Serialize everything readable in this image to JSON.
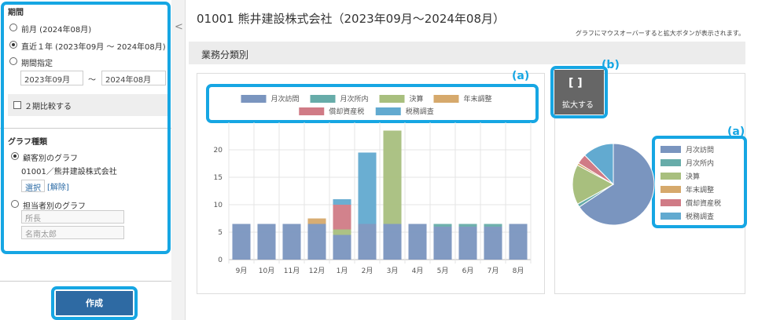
{
  "sidebar": {
    "period_title": "期間",
    "period_options": [
      "前月 (2024年08月)",
      "直近１年 (2023年09月 ～ 2024年08月)",
      "期間指定"
    ],
    "date_from": "2023年09月",
    "date_sep": "～",
    "date_to": "2024年08月",
    "compare": "２期比較する",
    "graph_type_title": "グラフ種類",
    "graph_options": [
      "顧客別のグラフ",
      "担当者別のグラフ"
    ],
    "customer": "01001／熊井建設株式会社",
    "select": "選択",
    "clear": "[解除]",
    "selects": [
      "所長",
      "名南太郎"
    ],
    "create_button": "作成"
  },
  "main": {
    "title": "01001 熊井建設株式会社（2023年09月～2024年08月）",
    "hint": "グラフにマウスオーバーすると拡大ボタンが表示されます。",
    "section": "業務分類別",
    "expand_button": "拡大する"
  },
  "callouts": [
    "a",
    "b",
    "a"
  ],
  "chart_data": [
    {
      "type": "bar",
      "stacked": true,
      "grid": true,
      "legend": "top",
      "categories": [
        "9月",
        "10月",
        "11月",
        "12月",
        "1月",
        "2月",
        "3月",
        "4月",
        "5月",
        "6月",
        "7月",
        "8月"
      ],
      "series": [
        {
          "name": "月次訪問",
          "color": "#7a95bf",
          "values": [
            6.5,
            6.5,
            6.5,
            6.5,
            4.5,
            6.5,
            6.5,
            6.5,
            6,
            6,
            6,
            6.5
          ]
        },
        {
          "name": "月次所内",
          "color": "#67aca9",
          "values": [
            0,
            0,
            0,
            0,
            0,
            0,
            0,
            0,
            0.5,
            0.5,
            0.5,
            0
          ]
        },
        {
          "name": "決算",
          "color": "#a8bf7e",
          "values": [
            0,
            0,
            0,
            0,
            1,
            0,
            17,
            0,
            0,
            0,
            0,
            0
          ]
        },
        {
          "name": "年末調整",
          "color": "#d6a96c",
          "values": [
            0,
            0,
            0,
            1,
            0,
            0,
            0,
            0,
            0,
            0,
            0,
            0
          ]
        },
        {
          "name": "償却資産税",
          "color": "#d07b86",
          "values": [
            0,
            0,
            0,
            0,
            4.5,
            0,
            0,
            0,
            0,
            0,
            0,
            0
          ]
        },
        {
          "name": "税務調査",
          "color": "#62aad0",
          "values": [
            0,
            0,
            0,
            0,
            1,
            13,
            0,
            0,
            0,
            0,
            0,
            0
          ]
        }
      ],
      "ylim": [
        0,
        25
      ],
      "yticks": [
        0,
        5,
        10,
        15,
        20
      ]
    },
    {
      "type": "pie",
      "legend": "right",
      "categories": [
        "月次訪問",
        "月次所内",
        "決算",
        "年末調整",
        "償却資産税",
        "税務調査"
      ],
      "colors": [
        "#7a95bf",
        "#67aca9",
        "#a8bf7e",
        "#d6a96c",
        "#d07b86",
        "#62aad0"
      ],
      "values": [
        74.5,
        1.5,
        18,
        1,
        4.5,
        14
      ]
    }
  ]
}
